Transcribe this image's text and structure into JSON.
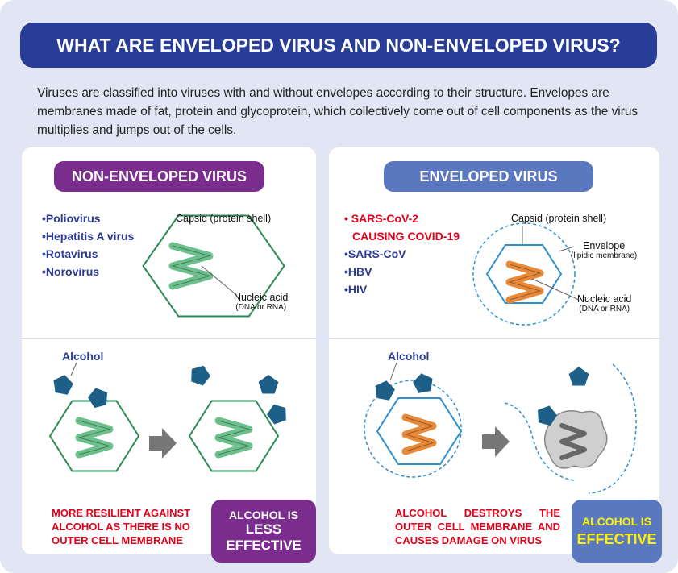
{
  "title": "WHAT ARE ENVELOPED VIRUS AND NON-ENVELOPED VIRUS?",
  "intro": "Viruses are classified into viruses with and without envelopes according to their structure. Envelopes are membranes made of fat, protein and glycoprotein, which collectively come out of cell components as the virus multiplies and jumps out of the cells.",
  "colors": {
    "title_bg": "#283d97",
    "non_enveloped": "#7b2d8e",
    "enveloped": "#5a78c0",
    "alert": "#e2001a",
    "alcohol": "#1d5f87",
    "nucleic_green": "#6cc08c",
    "nucleic_orange": "#e8893a",
    "capsid_green": "#2e8a55",
    "capsid_blue": "#2e8fcf",
    "effective_text": "#fff200"
  },
  "left": {
    "heading": "NON-ENVELOPED VIRUS",
    "examples": [
      "•Poliovirus",
      "•Hepatitis A virus",
      "•Rotavirus",
      "•Norovirus"
    ],
    "capsid_label": "Capsid (protein shell)",
    "nucleic_label": "Nucleic acid",
    "nucleic_sub": "(DNA or RNA)",
    "alcohol_label": "Alcohol",
    "note": "MORE RESILIENT AGAINST ALCOHOL AS THERE IS NO OUTER CELL MEMBRANE",
    "verdict_1": "ALCOHOL IS",
    "verdict_2": "LESS",
    "verdict_3": "EFFECTIVE"
  },
  "right": {
    "heading": "ENVELOPED VIRUS",
    "highlight_1": "• SARS-CoV-2",
    "highlight_2": "CAUSING COVID-19",
    "examples": [
      "•SARS-CoV",
      "•HBV",
      "•HIV"
    ],
    "capsid_label": "Capsid (protein shell)",
    "envelope_label": "Envelope",
    "envelope_sub": "(lipidic membrane)",
    "nucleic_label": "Nucleic acid",
    "nucleic_sub": "(DNA or RNA)",
    "alcohol_label": "Alcohol",
    "note": "ALCOHOL DESTROYS THE OUTER CELL MEMBRANE AND CAUSES DAMAGE ON VIRUS",
    "verdict_1": "ALCOHOL IS",
    "verdict_2": "EFFECTIVE"
  }
}
